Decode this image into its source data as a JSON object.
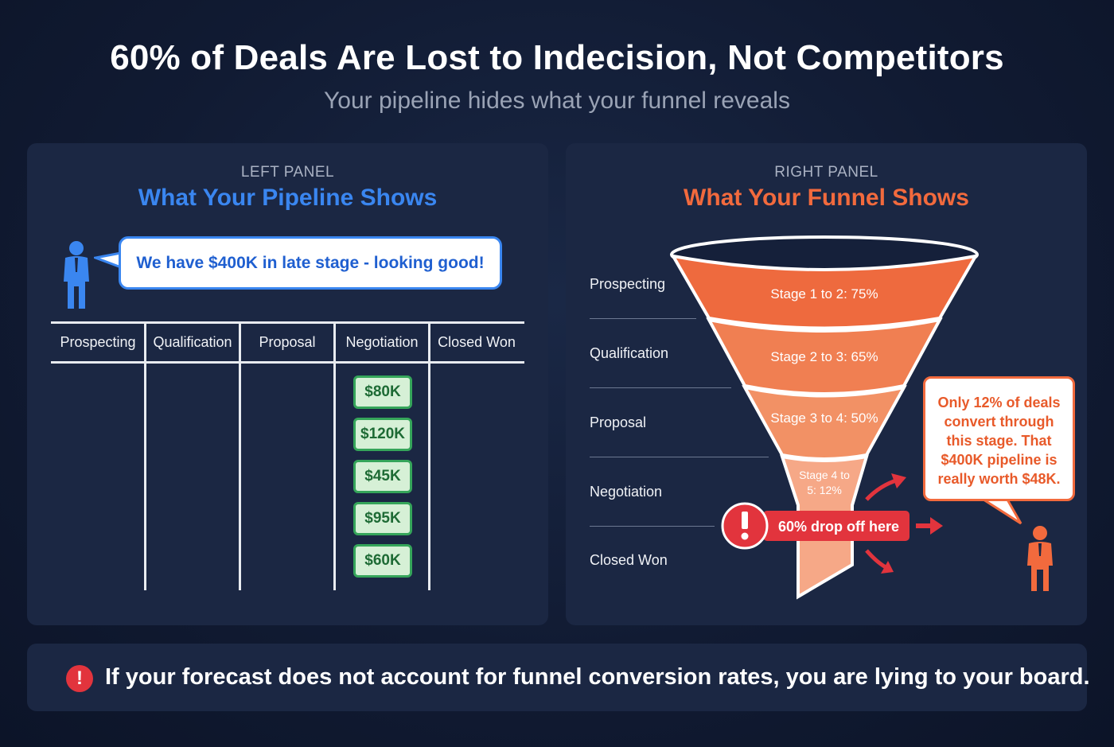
{
  "header": {
    "title": "60% of Deals Are Lost to Indecision, Not Competitors",
    "subtitle": "Your pipeline hides what your funnel reveals"
  },
  "left_panel": {
    "kicker": "LEFT PANEL",
    "heading": "What Your Pipeline Shows",
    "speech": "We have $400K in late stage - looking good!",
    "columns": [
      "Prospecting",
      "Qualification",
      "Proposal",
      "Negotiation",
      "Closed Won"
    ],
    "deals": [
      "$80K",
      "$120K",
      "$45K",
      "$95K",
      "$60K"
    ],
    "accent": "#3a86f0"
  },
  "right_panel": {
    "kicker": "RIGHT PANEL",
    "heading": "What Your Funnel Shows",
    "stages": [
      "Prospecting",
      "Qualification",
      "Proposal",
      "Negotiation",
      "Closed Won"
    ],
    "conversions": [
      {
        "label": "Stage 1 to 2: 75%",
        "rate": 75
      },
      {
        "label": "Stage 2 to 3: 65%",
        "rate": 65
      },
      {
        "label": "Stage 3 to 4: 50%",
        "rate": 50
      },
      {
        "label_line1": "Stage 4 to",
        "label_line2": "5: 12%",
        "rate": 12
      }
    ],
    "drop_off": "60% drop off here",
    "callout": {
      "line1": "Only 12% of deals",
      "line2": "convert through",
      "line3": "this stage. That",
      "line4": "$400K pipeline is",
      "line5": "really worth $48K."
    },
    "accent": "#f26a3d"
  },
  "footer": {
    "message": "If your forecast does not account for funnel conversion rates, you are lying to your board."
  }
}
